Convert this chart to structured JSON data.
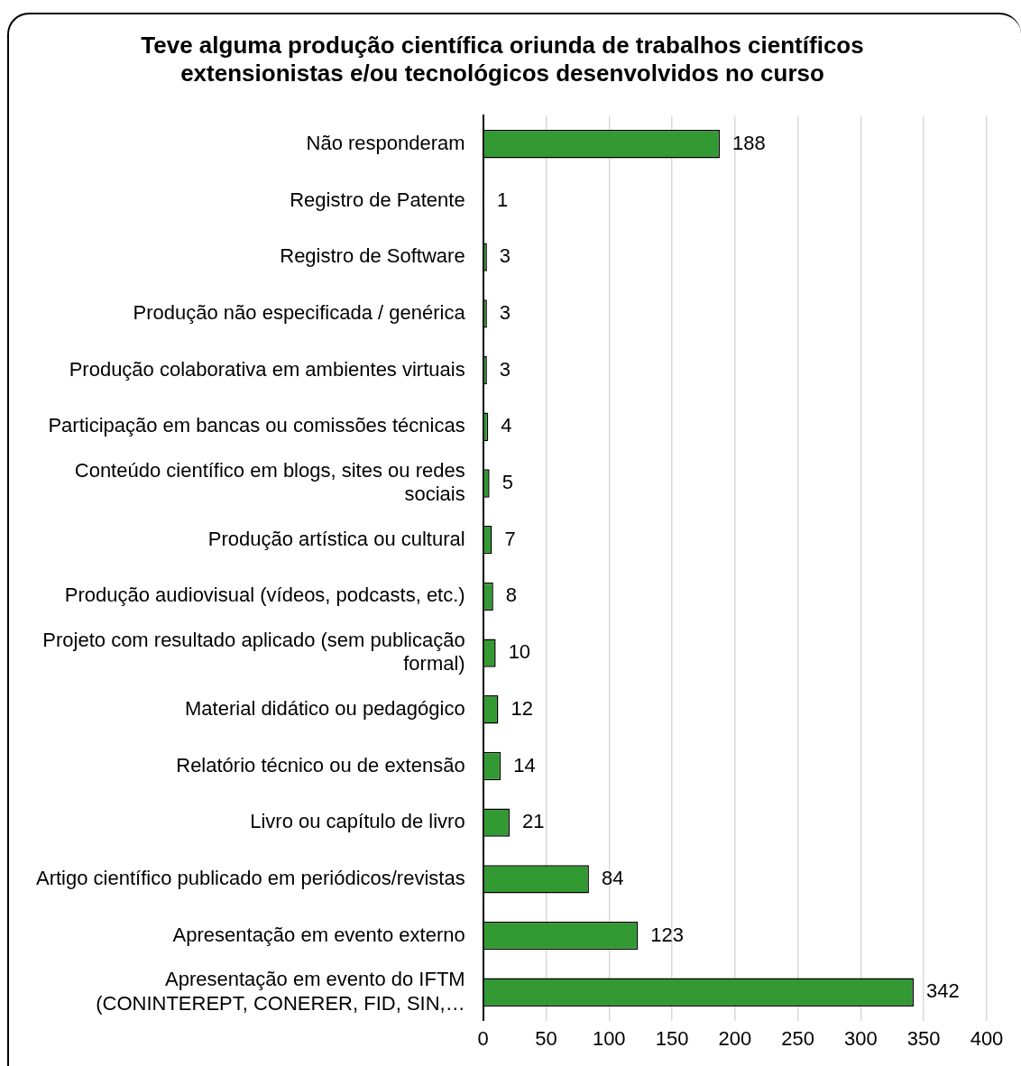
{
  "chart_data": {
    "type": "bar",
    "orientation": "horizontal",
    "title": "Teve alguma produção científica oriunda de trabalhos científicos\nextensionistas e/ou tecnológicos desenvolvidos no curso",
    "categories": [
      "Não responderam",
      "Registro de Patente",
      "Registro de Software",
      "Produção não especificada / genérica",
      "Produção colaborativa em ambientes virtuais",
      "Participação em bancas ou comissões técnicas",
      "Conteúdo científico em blogs, sites ou redes\nsociais",
      "Produção artística ou cultural",
      "Produção audiovisual (vídeos, podcasts, etc.)",
      "Projeto com resultado aplicado (sem publicação\nformal)",
      "Material didático ou pedagógico",
      "Relatório técnico ou de extensão",
      "Livro ou capítulo de livro",
      "Artigo científico publicado em periódicos/revistas",
      "Apresentação em evento externo",
      "Apresentação em evento do IFTM\n(CONINTEREPT, CONERER, FID, SIN,…"
    ],
    "values": [
      188,
      1,
      3,
      3,
      3,
      4,
      5,
      7,
      8,
      10,
      12,
      14,
      21,
      84,
      123,
      342
    ],
    "color": "#339933",
    "xlim": [
      0,
      400
    ],
    "xticks": [
      0,
      50,
      100,
      150,
      200,
      250,
      300,
      350,
      400
    ],
    "grid": "x",
    "data_labels": true
  }
}
